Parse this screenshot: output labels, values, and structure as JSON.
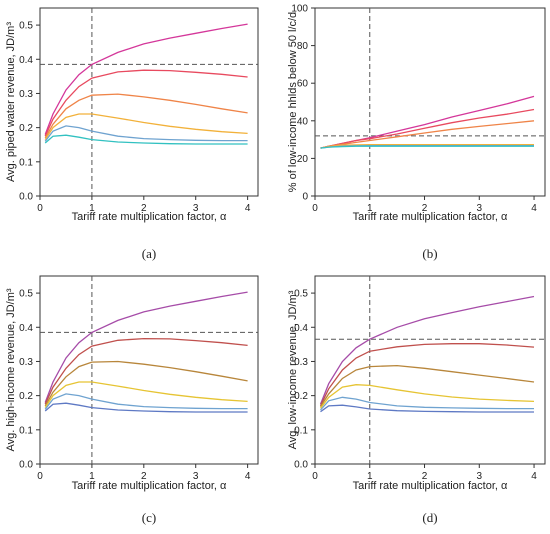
{
  "chart_data": [
    {
      "panel": "(a)",
      "type": "line",
      "xlabel": "Tariff rate multiplication factor, α",
      "ylabel": "Avg. piped water revenue, JD/m³",
      "xlim": [
        0,
        4.2
      ],
      "ylim": [
        0,
        0.55
      ],
      "xticks": [
        0,
        1,
        2,
        3,
        4
      ],
      "yticks": [
        0.0,
        0.1,
        0.2,
        0.3,
        0.4,
        0.5
      ],
      "vline": 1,
      "hline": 0.385,
      "x": [
        0.1,
        0.25,
        0.5,
        0.75,
        1,
        1.5,
        2,
        2.5,
        3,
        3.5,
        4
      ],
      "series": [
        {
          "color": "#d4379a",
          "values": [
            0.18,
            0.24,
            0.31,
            0.355,
            0.385,
            0.42,
            0.445,
            0.462,
            0.476,
            0.49,
            0.503
          ]
        },
        {
          "color": "#e84a5f",
          "values": [
            0.175,
            0.225,
            0.28,
            0.32,
            0.345,
            0.363,
            0.368,
            0.367,
            0.362,
            0.356,
            0.348
          ]
        },
        {
          "color": "#ef8448",
          "values": [
            0.17,
            0.21,
            0.255,
            0.28,
            0.295,
            0.298,
            0.29,
            0.28,
            0.268,
            0.255,
            0.243
          ]
        },
        {
          "color": "#f2b13a",
          "values": [
            0.165,
            0.2,
            0.23,
            0.24,
            0.24,
            0.228,
            0.215,
            0.204,
            0.195,
            0.188,
            0.183
          ]
        },
        {
          "color": "#6fa3d0",
          "values": [
            0.16,
            0.19,
            0.205,
            0.2,
            0.19,
            0.175,
            0.168,
            0.165,
            0.163,
            0.162,
            0.162
          ]
        },
        {
          "color": "#32c1c1",
          "values": [
            0.155,
            0.175,
            0.178,
            0.172,
            0.165,
            0.158,
            0.155,
            0.153,
            0.152,
            0.152,
            0.152
          ]
        }
      ],
      "panel_label": "(a)"
    },
    {
      "panel": "(b)",
      "type": "line",
      "xlabel": "Tariff rate multiplication factor, α",
      "ylabel": "% of low-income hhlds below 50 l/c/d",
      "xlim": [
        0,
        4.2
      ],
      "ylim": [
        0,
        100
      ],
      "xticks": [
        0,
        1,
        2,
        3,
        4
      ],
      "yticks": [
        0,
        20,
        40,
        60,
        80,
        100
      ],
      "vline": 1,
      "hline": 32,
      "x": [
        0.1,
        0.25,
        0.5,
        0.75,
        1,
        1.5,
        2,
        2.5,
        3,
        3.5,
        4
      ],
      "series": [
        {
          "color": "#d4379a",
          "values": [
            25.5,
            26.5,
            28,
            29.5,
            31,
            34.5,
            38,
            42,
            45.5,
            49,
            53
          ]
        },
        {
          "color": "#e84a5f",
          "values": [
            25.5,
            26.5,
            28,
            29.5,
            30.5,
            33,
            36,
            39,
            41.5,
            43.5,
            46
          ]
        },
        {
          "color": "#ef8448",
          "values": [
            25.5,
            26.5,
            27.5,
            28.5,
            29.5,
            31.5,
            33.5,
            35.5,
            37,
            38.5,
            40
          ]
        },
        {
          "color": "#f2b13a",
          "values": [
            25.5,
            26.3,
            27,
            27.2,
            27.3,
            27.3,
            27.3,
            27.3,
            27.3,
            27.3,
            27.3
          ]
        },
        {
          "color": "#6fa3d0",
          "values": [
            25.5,
            26,
            26.5,
            26.7,
            26.8,
            26.8,
            26.8,
            26.8,
            26.8,
            26.8,
            26.8
          ]
        },
        {
          "color": "#32c1c1",
          "values": [
            25.5,
            26,
            26.3,
            26.5,
            26.5,
            26.5,
            26.5,
            26.5,
            26.5,
            26.5,
            26.5
          ]
        }
      ],
      "panel_label": "(b)"
    },
    {
      "panel": "(c)",
      "type": "line",
      "xlabel": "Tariff rate multiplication factor, α",
      "ylabel": "Avg. high-income revenue, JD/m³",
      "xlim": [
        0,
        4.2
      ],
      "ylim": [
        0,
        0.55
      ],
      "xticks": [
        0,
        1,
        2,
        3,
        4
      ],
      "yticks": [
        0.0,
        0.1,
        0.2,
        0.3,
        0.4,
        0.5
      ],
      "vline": 1,
      "hline": 0.385,
      "x": [
        0.1,
        0.25,
        0.5,
        0.75,
        1,
        1.5,
        2,
        2.5,
        3,
        3.5,
        4
      ],
      "series": [
        {
          "color": "#a64ca8",
          "values": [
            0.18,
            0.24,
            0.31,
            0.355,
            0.385,
            0.42,
            0.445,
            0.462,
            0.476,
            0.49,
            0.503
          ]
        },
        {
          "color": "#c0504d",
          "values": [
            0.175,
            0.225,
            0.28,
            0.32,
            0.345,
            0.362,
            0.367,
            0.366,
            0.361,
            0.355,
            0.347
          ]
        },
        {
          "color": "#b8863b",
          "values": [
            0.17,
            0.21,
            0.255,
            0.285,
            0.298,
            0.3,
            0.292,
            0.282,
            0.27,
            0.257,
            0.243
          ]
        },
        {
          "color": "#e6c433",
          "values": [
            0.165,
            0.2,
            0.23,
            0.24,
            0.24,
            0.228,
            0.215,
            0.204,
            0.195,
            0.188,
            0.183
          ]
        },
        {
          "color": "#6fa3d0",
          "values": [
            0.16,
            0.19,
            0.205,
            0.2,
            0.19,
            0.175,
            0.168,
            0.165,
            0.163,
            0.162,
            0.162
          ]
        },
        {
          "color": "#5e79c4",
          "values": [
            0.155,
            0.175,
            0.178,
            0.172,
            0.165,
            0.158,
            0.155,
            0.153,
            0.152,
            0.152,
            0.152
          ]
        }
      ],
      "panel_label": "(c)"
    },
    {
      "panel": "(d)",
      "type": "line",
      "xlabel": "Tariff rate multiplication factor, α",
      "ylabel": "Avg. low-income revenue, JD/m³",
      "xlim": [
        0,
        4.2
      ],
      "ylim": [
        0,
        0.55
      ],
      "xticks": [
        0,
        1,
        2,
        3,
        4
      ],
      "yticks": [
        0.0,
        0.1,
        0.2,
        0.3,
        0.4,
        0.5
      ],
      "vline": 1,
      "hline": 0.365,
      "x": [
        0.1,
        0.25,
        0.5,
        0.75,
        1,
        1.5,
        2,
        2.5,
        3,
        3.5,
        4
      ],
      "series": [
        {
          "color": "#a64ca8",
          "values": [
            0.175,
            0.235,
            0.3,
            0.34,
            0.365,
            0.4,
            0.425,
            0.443,
            0.46,
            0.475,
            0.49
          ]
        },
        {
          "color": "#c0504d",
          "values": [
            0.17,
            0.22,
            0.275,
            0.31,
            0.33,
            0.343,
            0.35,
            0.352,
            0.352,
            0.348,
            0.342
          ]
        },
        {
          "color": "#b8863b",
          "values": [
            0.168,
            0.205,
            0.25,
            0.275,
            0.285,
            0.288,
            0.28,
            0.27,
            0.26,
            0.25,
            0.24
          ]
        },
        {
          "color": "#e6c433",
          "values": [
            0.163,
            0.195,
            0.225,
            0.232,
            0.23,
            0.217,
            0.205,
            0.196,
            0.19,
            0.186,
            0.183
          ]
        },
        {
          "color": "#6fa3d0",
          "values": [
            0.158,
            0.185,
            0.195,
            0.19,
            0.18,
            0.17,
            0.166,
            0.164,
            0.163,
            0.162,
            0.162
          ]
        },
        {
          "color": "#5e79c4",
          "values": [
            0.153,
            0.17,
            0.172,
            0.167,
            0.161,
            0.156,
            0.154,
            0.153,
            0.152,
            0.152,
            0.152
          ]
        }
      ],
      "panel_label": "(d)"
    }
  ]
}
